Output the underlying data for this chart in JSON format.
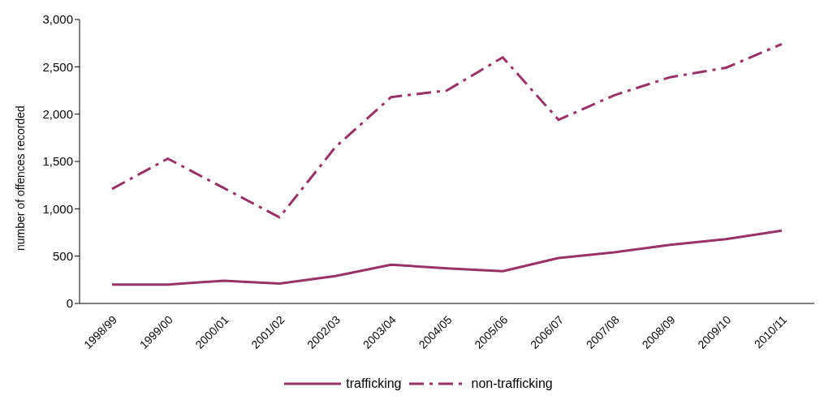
{
  "chart_data": {
    "type": "line",
    "ylabel": "number of offences recorded",
    "categories": [
      "1998/99",
      "1999/00",
      "2000/01",
      "2001/02",
      "2002/03",
      "2003/04",
      "2004/05",
      "2005/06",
      "2006/07",
      "2007/08",
      "2008/09",
      "2009/10",
      "2010/11"
    ],
    "series": [
      {
        "name": "trafficking",
        "color": "#993366",
        "line_style": "solid",
        "values": [
          200,
          200,
          240,
          210,
          290,
          410,
          370,
          340,
          480,
          540,
          620,
          680,
          770
        ]
      },
      {
        "name": "non-trafficking",
        "color": "#993366",
        "line_style": "dashdot",
        "values": [
          1210,
          1530,
          1220,
          910,
          1650,
          2180,
          2250,
          2600,
          1940,
          2200,
          2390,
          2490,
          2740
        ]
      }
    ],
    "ylim": [
      0,
      3000
    ],
    "yticks": [
      0,
      500,
      {
        "value": 1000,
        "label": "1,000"
      },
      {
        "value": 1500,
        "label": "1,500"
      },
      {
        "value": 2000,
        "label": "2,000"
      },
      {
        "value": 2500,
        "label": "2,500"
      },
      {
        "value": 3000,
        "label": "3,000"
      }
    ],
    "grid": false,
    "legend": "bottom",
    "marker": "none"
  }
}
